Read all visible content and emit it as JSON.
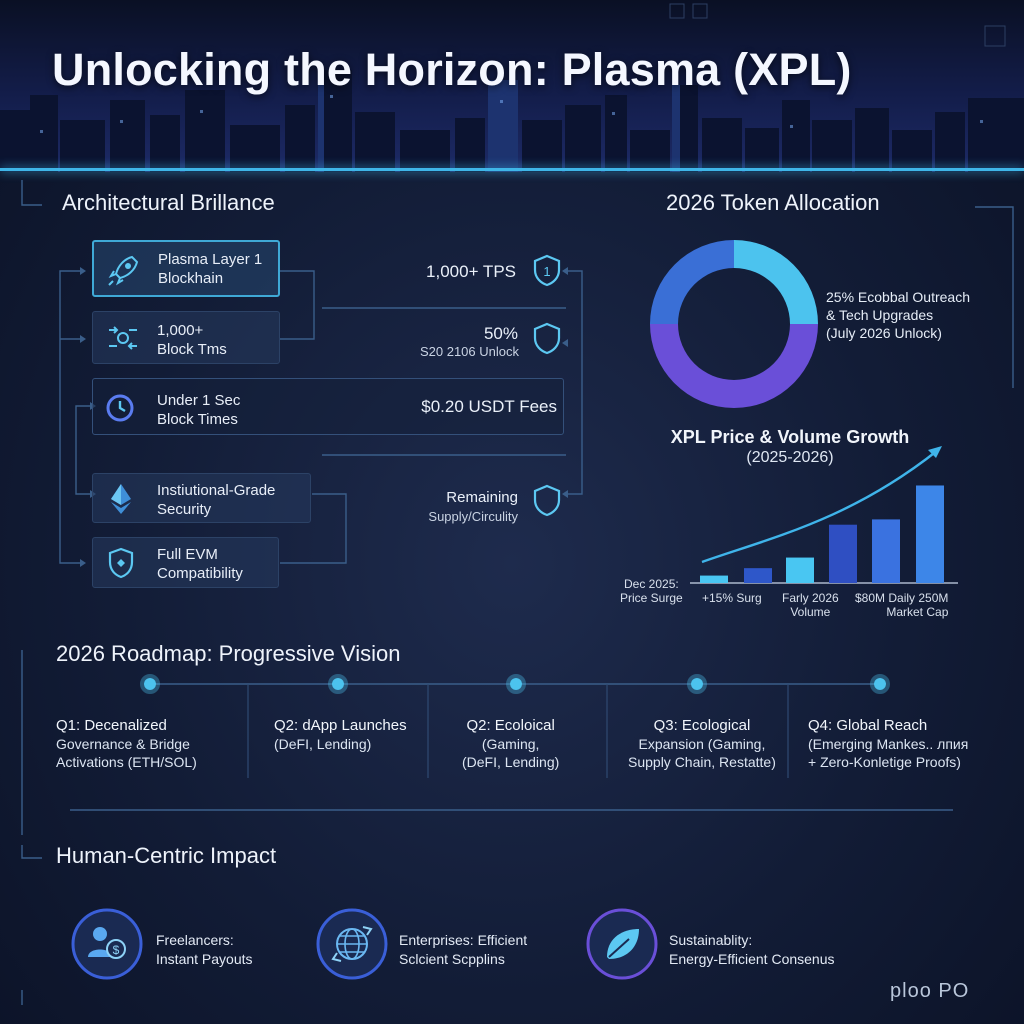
{
  "title": "Unlocking the Horizon: Plasma (XPL)",
  "architecture": {
    "title": "Architectural Brillance",
    "features": [
      {
        "line1": "Plasma Layer 1",
        "line2": "Blockhain",
        "icon": "rocket-icon"
      },
      {
        "line1": "1,000+",
        "line2": "Block Tms",
        "icon": "network-icon"
      },
      {
        "line1": "Under 1 Sec",
        "line2": "Block Times",
        "icon": "clock-icon"
      },
      {
        "line1": "Instiutional-Grade",
        "line2": "Security",
        "icon": "ethereum-icon"
      },
      {
        "line1": "Full EVM",
        "line2": "Compatibility",
        "icon": "shield-icon"
      }
    ],
    "metrics": [
      {
        "line1": "1,000+ TPS",
        "line2": ""
      },
      {
        "line1": "50%",
        "line2": "S20 2106 Unlock"
      },
      {
        "line1": "$0.20 USDT Fees",
        "line2": ""
      },
      {
        "line1": "Remaining",
        "line2": "Supply/Circulity"
      }
    ]
  },
  "allocation": {
    "title": "2026 Token Allocation",
    "label": [
      "25% Ecobbal Outreach",
      "& Tech Upgrades",
      "(July 2026 Unlock)"
    ],
    "colors": [
      "#4cc3ee",
      "#6a4fd8",
      "#3a6fd6"
    ]
  },
  "chart_data": {
    "type": "bar",
    "title": "XPL Price & Volume Growth",
    "subtitle": "(2025-2026)",
    "values": [
      7,
      14,
      24,
      55,
      60,
      92
    ],
    "tick_labels": [
      [
        "Dec 2025:",
        "Price Surge"
      ],
      [
        "+15% Surg"
      ],
      [
        "Farly  2026",
        "Volume"
      ],
      [
        "$80M Daily 250M",
        "Market Cap"
      ]
    ],
    "colors": [
      "#49c6f2",
      "#2e57c9",
      "#49c6f2",
      "#2f4fc2",
      "#3a72e0",
      "#3d86e8"
    ],
    "trend_color": "#3fb4ea"
  },
  "roadmap": {
    "title": "2026 Roadmap: Progressive Vision",
    "items": [
      {
        "head": "Q1: Decenalized",
        "l2": "Governance & Bridge",
        "l3": "Activations (ETH/SOL)"
      },
      {
        "head": "Q2: dApp Launches",
        "l2": "(DeFI, Lending)",
        "l3": ""
      },
      {
        "head": "Q2: Ecoloical",
        "l2": "(Gaming,",
        "l3": "(DeFI, Lending)"
      },
      {
        "head": "Q3: Ecological",
        "l2": "Expansion (Gaming,",
        "l3": "Supply Chain, Restatte)"
      },
      {
        "head": "Q4: Global Reach",
        "l2": "(Emerging Mankes.. лпия",
        "l3": "+ Zero-Konletige Proofs)"
      }
    ]
  },
  "impact": {
    "title": "Human-Centric Impact",
    "items": [
      {
        "l1": "Freelancers:",
        "l2": "Instant Payouts",
        "icon": "freelancer-payout-icon"
      },
      {
        "l1": "Enterprises: Efficient",
        "l2": "Sclcient Scpplins",
        "icon": "globe-supply-icon"
      },
      {
        "l1": "Sustainablity:",
        "l2": "Energy-Efficient Consenus",
        "icon": "leaf-icon"
      }
    ]
  },
  "logo": "ploo PO",
  "accent": "#3fb6e8"
}
